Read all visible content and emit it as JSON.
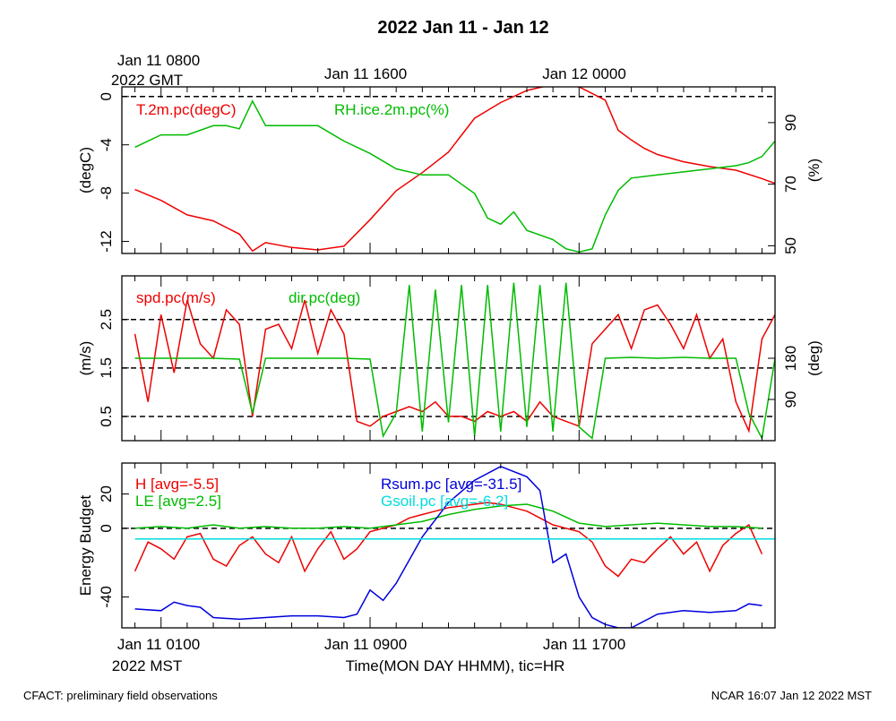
{
  "title": "2022 Jan 11 - Jan 12",
  "top_axis": {
    "first_label_line1": "Jan 11 0800",
    "first_label_line2": "2022 GMT",
    "labels": [
      "Jan 11 1600",
      "Jan 12 0000"
    ]
  },
  "bottom_axis": {
    "first_label_line1": "Jan 11 0100",
    "first_label_line2": "2022 MST",
    "labels": [
      "Jan 11 0900",
      "Jan 11 1700"
    ],
    "title": "Time(MON DAY HHMM), tic=HR"
  },
  "footer": {
    "left": "CFACT: preliminary field observations",
    "right": "NCAR 16:07 Jan 12 2022 MST"
  },
  "colors": {
    "red": "#ee0000",
    "green": "#00bb00",
    "blue": "#0000dd",
    "cyan": "#00dddd",
    "black": "#000000"
  },
  "chart_data": [
    {
      "type": "line",
      "panel": "temperature-humidity",
      "x_unit": "hours since Jan 11 0100 MST",
      "xlim": [
        -1.5,
        23.5
      ],
      "left_axis": {
        "label": "(degC)",
        "ylim": [
          -13,
          0.8
        ],
        "ticks": [
          0,
          -4,
          -8,
          -12
        ]
      },
      "right_axis": {
        "label": "(%)",
        "ylim": [
          47.5,
          101.6
        ],
        "ticks": [
          90,
          70,
          50
        ]
      },
      "reference_lines": [
        {
          "axis": "left",
          "y": 0
        }
      ],
      "series": [
        {
          "name": "T.2m.pc(degC)",
          "label": "T.2m.pc(degC)",
          "axis": "left",
          "color": "#ee0000",
          "x": [
            -1,
            0,
            1,
            2,
            3,
            3.5,
            4,
            5,
            6,
            7,
            8,
            9,
            10,
            11,
            12,
            13,
            14,
            15,
            16,
            17,
            17.5,
            18,
            18.5,
            19,
            20,
            21,
            22,
            23,
            23.5
          ],
          "y": [
            -7.7,
            -8.6,
            -9.8,
            -10.3,
            -11.4,
            -12.8,
            -12.1,
            -12.5,
            -12.7,
            -12.4,
            -10.2,
            -7.8,
            -6.3,
            -4.6,
            -1.8,
            -0.5,
            0.5,
            1.0,
            0.8,
            -0.3,
            -2.8,
            -3.6,
            -4.3,
            -4.8,
            -5.4,
            -5.8,
            -6.1,
            -6.8,
            -7.2
          ]
        },
        {
          "name": "RH.ice.2m.pc(%)",
          "label": "RH.ice.2m.pc(%)",
          "axis": "right",
          "color": "#00bb00",
          "x": [
            -1,
            0,
            1,
            2,
            2.5,
            3,
            3.5,
            4,
            5,
            6,
            7,
            8,
            9,
            10,
            11,
            12,
            12.5,
            13,
            13.5,
            14,
            15,
            15.5,
            16,
            16.5,
            17,
            17.5,
            18,
            19,
            20,
            21,
            22,
            22.5,
            23,
            23.5
          ],
          "y": [
            82,
            86,
            86,
            89,
            89,
            88,
            97,
            89,
            89,
            89,
            84,
            80,
            75,
            73,
            73,
            67,
            59,
            57,
            61,
            55,
            52,
            49,
            48,
            49,
            60,
            68,
            72,
            73,
            74,
            75,
            76,
            77,
            79,
            84
          ]
        }
      ]
    },
    {
      "type": "line",
      "panel": "wind",
      "x_unit": "hours since Jan 11 0100 MST",
      "xlim": [
        -1.5,
        23.5
      ],
      "left_axis": {
        "label": "(m/s)",
        "ylim": [
          0,
          3.4
        ],
        "ticks": [
          2.5,
          1.5,
          0.5
        ]
      },
      "right_axis": {
        "label": "(deg)",
        "ylim": [
          0,
          360
        ],
        "ticks": [
          180,
          90
        ]
      },
      "reference_lines": [
        {
          "axis": "left",
          "y": 2.5
        },
        {
          "axis": "left",
          "y": 1.5
        },
        {
          "axis": "left",
          "y": 0.5
        }
      ],
      "series": [
        {
          "name": "spd.pc(m/s)",
          "label": "spd.pc(m/s)",
          "axis": "left",
          "color": "#ee0000",
          "x": [
            -1,
            -0.5,
            0,
            0.5,
            1,
            1.5,
            2,
            2.5,
            3,
            3.5,
            4,
            4.5,
            5,
            5.5,
            6,
            6.5,
            7,
            7.5,
            8,
            8.5,
            9,
            9.5,
            10,
            10.5,
            11,
            11.5,
            12,
            12.5,
            13,
            13.5,
            14,
            14.5,
            15,
            15.5,
            16,
            16.5,
            17,
            17.5,
            18,
            18.5,
            19,
            19.5,
            20,
            20.5,
            21,
            21.5,
            22,
            22.5,
            23,
            23.5
          ],
          "y": [
            2.2,
            0.8,
            2.6,
            1.4,
            2.9,
            2.0,
            1.7,
            2.7,
            2.4,
            0.5,
            2.3,
            2.4,
            1.9,
            2.9,
            1.8,
            2.7,
            2.2,
            0.4,
            0.3,
            0.5,
            0.6,
            0.7,
            0.6,
            0.8,
            0.5,
            0.5,
            0.4,
            0.6,
            0.5,
            0.6,
            0.4,
            0.8,
            0.5,
            0.4,
            0.3,
            2.0,
            2.3,
            2.6,
            1.9,
            2.7,
            2.8,
            2.4,
            1.9,
            2.6,
            1.7,
            2.1,
            0.8,
            0.2,
            2.1,
            2.6
          ]
        },
        {
          "name": "dir.pc(deg)",
          "label": "dir.pc(deg)",
          "axis": "right",
          "color": "#00bb00",
          "x": [
            -1,
            0,
            1,
            2,
            3,
            3.5,
            4,
            5,
            6,
            7,
            8,
            8.5,
            9,
            9.5,
            10,
            10.5,
            11,
            11.5,
            12,
            12.5,
            13,
            13.5,
            14,
            14.5,
            15,
            15.5,
            16,
            16.5,
            17,
            18,
            19,
            20,
            21,
            22,
            22.5,
            23,
            23.5
          ],
          "y": [
            180,
            180,
            180,
            180,
            178,
            60,
            180,
            180,
            180,
            180,
            178,
            10,
            60,
            340,
            20,
            330,
            40,
            340,
            10,
            340,
            20,
            345,
            30,
            340,
            20,
            345,
            30,
            5,
            180,
            182,
            180,
            182,
            180,
            180,
            60,
            5,
            180
          ]
        }
      ]
    },
    {
      "type": "line",
      "panel": "energy-budget",
      "x_unit": "hours since Jan 11 0100 MST",
      "xlim": [
        -1.5,
        23.5
      ],
      "left_axis": {
        "label": "Energy Budget",
        "ylim": [
          -58,
          38
        ],
        "ticks": [
          20,
          0,
          -40
        ]
      },
      "reference_lines": [
        {
          "axis": "left",
          "y": 0
        }
      ],
      "series": [
        {
          "name": "H",
          "label": "H [avg=-5.5]",
          "axis": "left",
          "color": "#ee0000",
          "x": [
            -1,
            -0.5,
            0,
            0.5,
            1,
            1.5,
            2,
            2.5,
            3,
            3.5,
            4,
            4.5,
            5,
            5.5,
            6,
            6.5,
            7,
            7.5,
            8,
            8.5,
            9,
            9.5,
            10,
            10.5,
            11,
            11.5,
            12,
            12.5,
            13,
            13.5,
            14,
            14.5,
            15,
            15.5,
            16,
            16.5,
            17,
            17.5,
            18,
            18.5,
            19,
            19.5,
            20,
            20.5,
            21,
            21.5,
            22,
            22.5,
            23
          ],
          "y": [
            -25,
            -8,
            -12,
            -18,
            -5,
            -3,
            -18,
            -22,
            -10,
            -5,
            -15,
            -20,
            -5,
            -25,
            -12,
            -2,
            -18,
            -12,
            -2,
            0,
            2,
            6,
            8,
            10,
            12,
            13,
            14,
            15,
            14,
            12,
            10,
            6,
            2,
            0,
            -2,
            -8,
            -22,
            -28,
            -18,
            -20,
            -12,
            -5,
            -15,
            -8,
            -25,
            -10,
            -3,
            2,
            -15
          ]
        },
        {
          "name": "LE",
          "label": "LE [avg=2.5]",
          "axis": "left",
          "color": "#00bb00",
          "x": [
            -1,
            0,
            1,
            2,
            3,
            4,
            5,
            6,
            7,
            8,
            9,
            10,
            11,
            12,
            13,
            14,
            15,
            16,
            17,
            18,
            19,
            20,
            21,
            22,
            23
          ],
          "y": [
            0,
            1,
            0,
            2,
            0,
            1,
            0,
            0,
            1,
            0,
            2,
            4,
            8,
            11,
            13,
            14,
            10,
            3,
            1,
            2,
            3,
            2,
            1,
            1,
            0
          ]
        },
        {
          "name": "Rsum.pc",
          "label": "Rsum.pc [avg=-31.5]",
          "axis": "left",
          "color": "#0000dd",
          "x": [
            -1,
            0,
            0.5,
            1,
            1.5,
            2,
            3,
            4,
            5,
            6,
            7,
            7.5,
            8,
            8.5,
            9,
            10,
            11,
            12,
            13,
            14,
            14.5,
            15,
            15.5,
            16,
            16.5,
            17,
            17.5,
            18,
            19,
            20,
            21,
            22,
            22.5,
            23
          ],
          "y": [
            -47,
            -48,
            -43,
            -45,
            -46,
            -52,
            -53,
            -52,
            -51,
            -51,
            -52,
            -50,
            -36,
            -42,
            -32,
            -5,
            15,
            28,
            36,
            30,
            22,
            -20,
            -15,
            -40,
            -52,
            -56,
            -58,
            -58,
            -50,
            -48,
            -49,
            -48,
            -44,
            -45
          ]
        },
        {
          "name": "Gsoil.pc",
          "label": "Gsoil.pc [avg=-6.2]",
          "axis": "left",
          "color": "#00dddd",
          "x": [
            -1,
            23.5
          ],
          "y": [
            -6.2,
            -6.2
          ]
        }
      ]
    }
  ]
}
